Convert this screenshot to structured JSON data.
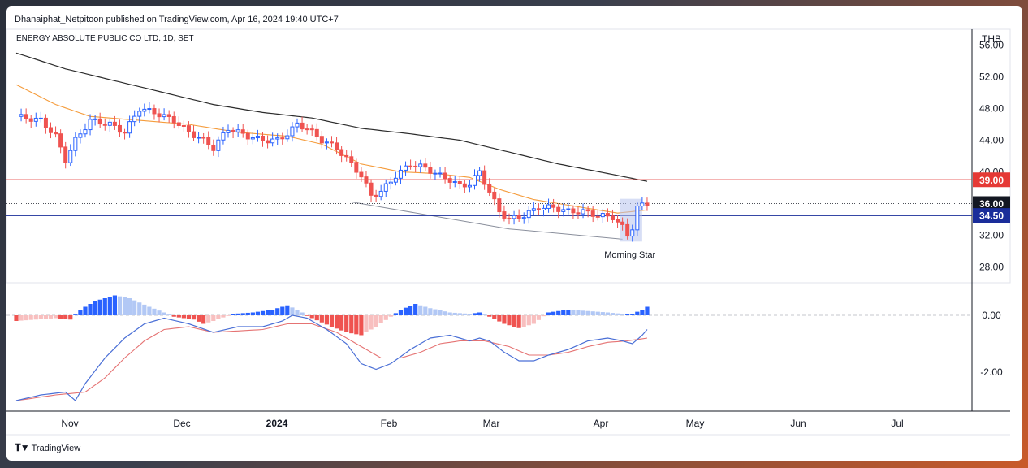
{
  "header": {
    "published": "Dhanaiphat_Netpitoon published on TradingView.com, Apr 16, 2024 19:40 UTC+7",
    "symbol": "ENERGY ABSOLUTE PUBLIC CO LTD, 1D, SET",
    "currency": "THB"
  },
  "brand": {
    "name": "TradingView",
    "logo": "tradingview-logo-icon"
  },
  "colors": {
    "up": "#2962ff",
    "down": "#ef5350",
    "ema_fast": "#f59c3c",
    "ema_slow": "#2b2b2b",
    "resistance": "#e53935",
    "support": "#1a2d9a",
    "hist_up_strong": "#2962ff",
    "hist_up_weak": "#b2c8f5",
    "hist_down_strong": "#ef5350",
    "hist_down_weak": "#f8bfbf",
    "macd": "#4a6fd6",
    "signal": "#e57373"
  },
  "chart_data": {
    "type": "candlestick",
    "price_axis": {
      "min": 26,
      "max": 58,
      "ticks": [
        "56.00",
        "52.00",
        "48.00",
        "44.00",
        "40.00",
        "36.00",
        "32.00",
        "28.00"
      ]
    },
    "time_axis": [
      "Nov",
      "Dec",
      "2024",
      "Feb",
      "Mar",
      "Apr",
      "May",
      "Jun",
      "Jul"
    ],
    "price_labels": [
      {
        "value": 39.0,
        "text": "39.00",
        "kind": "resistance"
      },
      {
        "value": 36.0,
        "text": "36.00",
        "kind": "last"
      },
      {
        "value": 34.5,
        "text": "34.50",
        "kind": "support"
      }
    ],
    "annotation": "Morning Star",
    "price_path_waypoints": [
      [
        0,
        47
      ],
      [
        5,
        46.5
      ],
      [
        8,
        44.5
      ],
      [
        10,
        41.5
      ],
      [
        12,
        44
      ],
      [
        15,
        46.5
      ],
      [
        19,
        46
      ],
      [
        22,
        45
      ],
      [
        25,
        48
      ],
      [
        28,
        47.5
      ],
      [
        32,
        46.5
      ],
      [
        35,
        45
      ],
      [
        38,
        44
      ],
      [
        40,
        43
      ],
      [
        43,
        45.5
      ],
      [
        47,
        44.5
      ],
      [
        50,
        44
      ],
      [
        53,
        44
      ],
      [
        55,
        44.8
      ],
      [
        57,
        46
      ],
      [
        59,
        45.5
      ],
      [
        62,
        44
      ],
      [
        65,
        43
      ],
      [
        68,
        41
      ],
      [
        70,
        39.5
      ],
      [
        72,
        37
      ],
      [
        74,
        37.5
      ],
      [
        77,
        39.5
      ],
      [
        80,
        41
      ],
      [
        83,
        40.5
      ],
      [
        86,
        39.5
      ],
      [
        88,
        39
      ],
      [
        90,
        38.2
      ],
      [
        92,
        38.5
      ],
      [
        94,
        40
      ],
      [
        96,
        37.5
      ],
      [
        98,
        35
      ],
      [
        100,
        34
      ],
      [
        103,
        34.5
      ],
      [
        106,
        35.5
      ],
      [
        109,
        35.5
      ],
      [
        112,
        35
      ],
      [
        115,
        35
      ],
      [
        118,
        34.5
      ],
      [
        121,
        34.3
      ],
      [
        123,
        33
      ],
      [
        124,
        32
      ],
      [
        125,
        33
      ],
      [
        126,
        35.5
      ],
      [
        127,
        35.8
      ],
      [
        128,
        36
      ]
    ],
    "ema_fast_waypoints": [
      [
        0,
        51
      ],
      [
        8,
        48.5
      ],
      [
        15,
        47
      ],
      [
        25,
        46.5
      ],
      [
        35,
        46
      ],
      [
        45,
        45
      ],
      [
        55,
        44.5
      ],
      [
        62,
        43.5
      ],
      [
        70,
        41
      ],
      [
        78,
        40
      ],
      [
        85,
        39.8
      ],
      [
        92,
        39.3
      ],
      [
        98,
        37.8
      ],
      [
        105,
        36.5
      ],
      [
        112,
        35.8
      ],
      [
        118,
        35.2
      ],
      [
        122,
        34.8
      ],
      [
        128,
        35.2
      ]
    ],
    "ema_slow_waypoints": [
      [
        0,
        55
      ],
      [
        10,
        53
      ],
      [
        20,
        51.5
      ],
      [
        30,
        50
      ],
      [
        40,
        48.5
      ],
      [
        50,
        47.5
      ],
      [
        60,
        46.8
      ],
      [
        70,
        45.5
      ],
      [
        80,
        44.8
      ],
      [
        90,
        44
      ],
      [
        100,
        42.5
      ],
      [
        110,
        41
      ],
      [
        120,
        39.8
      ],
      [
        128,
        38.8
      ]
    ],
    "wedge_upper": [
      [
        68,
        36.2
      ],
      [
        100,
        32.8
      ]
    ],
    "wedge_lower": [
      [
        100,
        32.8
      ],
      [
        123,
        31.5
      ]
    ],
    "macd": {
      "ticks": [
        "0.00",
        "-2.00"
      ],
      "range": [
        -3.2,
        1.0
      ],
      "macd_waypoints": [
        [
          0,
          -3
        ],
        [
          5,
          -2.8
        ],
        [
          10,
          -2.7
        ],
        [
          12,
          -3
        ],
        [
          14,
          -2.4
        ],
        [
          18,
          -1.5
        ],
        [
          22,
          -0.8
        ],
        [
          26,
          -0.3
        ],
        [
          30,
          -0.1
        ],
        [
          35,
          -0.3
        ],
        [
          40,
          -0.6
        ],
        [
          45,
          -0.4
        ],
        [
          50,
          -0.4
        ],
        [
          54,
          -0.2
        ],
        [
          56,
          0
        ],
        [
          59,
          -0.1
        ],
        [
          63,
          -0.5
        ],
        [
          67,
          -1
        ],
        [
          70,
          -1.7
        ],
        [
          73,
          -1.9
        ],
        [
          76,
          -1.7
        ],
        [
          80,
          -1.2
        ],
        [
          84,
          -0.8
        ],
        [
          88,
          -0.7
        ],
        [
          92,
          -0.9
        ],
        [
          94,
          -0.8
        ],
        [
          96,
          -0.9
        ],
        [
          99,
          -1.3
        ],
        [
          102,
          -1.6
        ],
        [
          105,
          -1.6
        ],
        [
          108,
          -1.4
        ],
        [
          112,
          -1.2
        ],
        [
          116,
          -0.9
        ],
        [
          120,
          -0.8
        ],
        [
          123,
          -0.9
        ],
        [
          125,
          -1.0
        ],
        [
          127,
          -0.7
        ],
        [
          128,
          -0.5
        ]
      ],
      "signal_waypoints": [
        [
          0,
          -3
        ],
        [
          8,
          -2.8
        ],
        [
          14,
          -2.7
        ],
        [
          18,
          -2.2
        ],
        [
          22,
          -1.5
        ],
        [
          26,
          -0.9
        ],
        [
          30,
          -0.5
        ],
        [
          35,
          -0.4
        ],
        [
          40,
          -0.6
        ],
        [
          45,
          -0.55
        ],
        [
          50,
          -0.5
        ],
        [
          55,
          -0.3
        ],
        [
          60,
          -0.3
        ],
        [
          65,
          -0.6
        ],
        [
          70,
          -1.1
        ],
        [
          74,
          -1.5
        ],
        [
          78,
          -1.5
        ],
        [
          82,
          -1.3
        ],
        [
          86,
          -1.0
        ],
        [
          90,
          -0.9
        ],
        [
          95,
          -0.9
        ],
        [
          100,
          -1.1
        ],
        [
          104,
          -1.4
        ],
        [
          108,
          -1.4
        ],
        [
          112,
          -1.3
        ],
        [
          116,
          -1.1
        ],
        [
          120,
          -0.95
        ],
        [
          124,
          -0.9
        ],
        [
          128,
          -0.8
        ]
      ],
      "histogram_waypoints": [
        [
          0,
          -0.2
        ],
        [
          8,
          -0.1
        ],
        [
          11,
          -0.15
        ],
        [
          13,
          0.2
        ],
        [
          16,
          0.5
        ],
        [
          20,
          0.7
        ],
        [
          23,
          0.6
        ],
        [
          27,
          0.3
        ],
        [
          30,
          0.1
        ],
        [
          32,
          -0.05
        ],
        [
          36,
          -0.15
        ],
        [
          38,
          -0.3
        ],
        [
          40,
          -0.2
        ],
        [
          44,
          0.05
        ],
        [
          48,
          0.1
        ],
        [
          52,
          0.2
        ],
        [
          55,
          0.35
        ],
        [
          57,
          0.2
        ],
        [
          60,
          -0.1
        ],
        [
          64,
          -0.4
        ],
        [
          67,
          -0.6
        ],
        [
          70,
          -0.7
        ],
        [
          73,
          -0.4
        ],
        [
          76,
          -0.05
        ],
        [
          78,
          0.2
        ],
        [
          81,
          0.4
        ],
        [
          84,
          0.25
        ],
        [
          88,
          0.1
        ],
        [
          92,
          0.05
        ],
        [
          94,
          0.1
        ],
        [
          96,
          -0.05
        ],
        [
          99,
          -0.3
        ],
        [
          102,
          -0.45
        ],
        [
          105,
          -0.3
        ],
        [
          108,
          0.1
        ],
        [
          112,
          0.2
        ],
        [
          116,
          0.15
        ],
        [
          120,
          0.1
        ],
        [
          123,
          0.05
        ],
        [
          125,
          0.05
        ],
        [
          127,
          0.2
        ],
        [
          128,
          0.3
        ]
      ]
    }
  }
}
